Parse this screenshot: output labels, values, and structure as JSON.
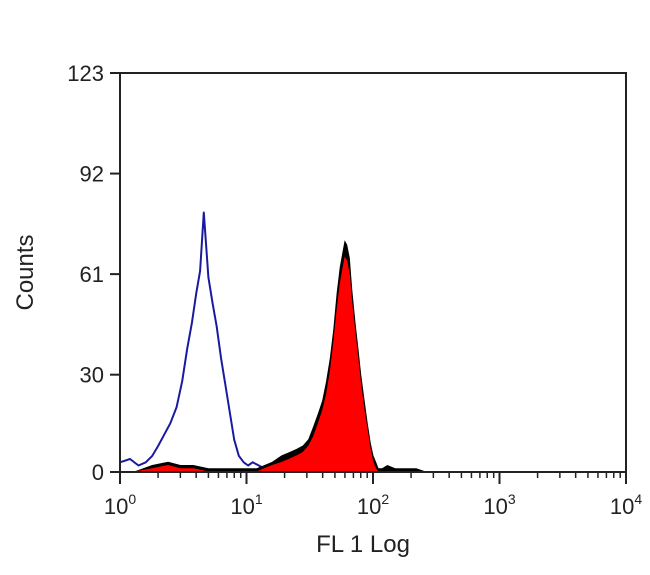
{
  "chart_data": {
    "type": "area",
    "title": "",
    "xlabel": "FL 1 Log",
    "ylabel": "Counts",
    "x_scale": "log",
    "xlim": [
      1,
      10000
    ],
    "ylim": [
      0,
      123
    ],
    "x_ticks": [
      {
        "base": "10",
        "exp": "0"
      },
      {
        "base": "10",
        "exp": "1"
      },
      {
        "base": "10",
        "exp": "2"
      },
      {
        "base": "10",
        "exp": "3"
      },
      {
        "base": "10",
        "exp": "4"
      }
    ],
    "y_ticks": [
      "0",
      "30",
      "61",
      "92",
      "123"
    ],
    "grid": false,
    "legend": "none",
    "series": [
      {
        "style": "outline",
        "color": "#1a1aa0",
        "x": [
          1.0,
          1.2,
          1.4,
          1.6,
          1.8,
          2.0,
          2.2,
          2.5,
          2.8,
          3.1,
          3.4,
          3.7,
          4.0,
          4.3,
          4.6,
          5.0,
          5.4,
          5.8,
          6.3,
          6.8,
          7.4,
          8.0,
          8.7,
          9.5,
          10.3,
          11.2,
          12.5,
          14.0
        ],
        "y": [
          3,
          4,
          2,
          3,
          5,
          8,
          11,
          15,
          20,
          28,
          38,
          46,
          55,
          62,
          80,
          60,
          52,
          45,
          35,
          27,
          18,
          10,
          5,
          3,
          2,
          3,
          2,
          1
        ]
      },
      {
        "style": "filled",
        "color": "#000000",
        "x": [
          1.3,
          1.8,
          2.4,
          3.0,
          3.8,
          5.0,
          8.0,
          12.0,
          16.0,
          19.0,
          22.0,
          25.0,
          28.0,
          31.0,
          34.0,
          37.0,
          40.0,
          43.0,
          46.0,
          49.0,
          52.0,
          55.0,
          58.0,
          60.0,
          62.0,
          65.0,
          68.0,
          72.0,
          76.0,
          80.0,
          85.0,
          90.0,
          95.0,
          100.0,
          105.0,
          110.0,
          118.0,
          130.0,
          150.0,
          180.0,
          220.0,
          260.0
        ],
        "y": [
          0,
          2,
          3,
          2,
          2,
          1,
          1,
          1,
          3,
          5,
          6,
          7,
          8,
          10,
          14,
          18,
          22,
          28,
          35,
          44,
          55,
          63,
          68,
          71,
          70,
          66,
          56,
          46,
          38,
          30,
          22,
          15,
          9,
          5,
          3,
          1,
          1,
          2,
          1,
          1,
          1,
          0
        ]
      },
      {
        "style": "filled",
        "color": "#ff0000",
        "x": [
          1.3,
          1.8,
          2.4,
          3.0,
          3.8,
          5.0,
          8.0,
          12.0,
          16.0,
          19.0,
          22.0,
          25.0,
          28.0,
          31.0,
          34.0,
          37.0,
          40.0,
          43.0,
          46.0,
          49.0,
          52.0,
          55.0,
          58.0,
          60.0,
          62.0,
          65.0,
          68.0,
          72.0,
          76.0,
          80.0,
          85.0,
          90.0,
          95.0,
          100.0,
          105.0,
          110.0
        ],
        "y": [
          0,
          1,
          2,
          1,
          1,
          0,
          0,
          0,
          2,
          3,
          4,
          5,
          6,
          8,
          11,
          15,
          19,
          24,
          31,
          40,
          50,
          58,
          63,
          66,
          65,
          61,
          52,
          43,
          35,
          27,
          19,
          13,
          7,
          3,
          1,
          0
        ]
      }
    ]
  }
}
